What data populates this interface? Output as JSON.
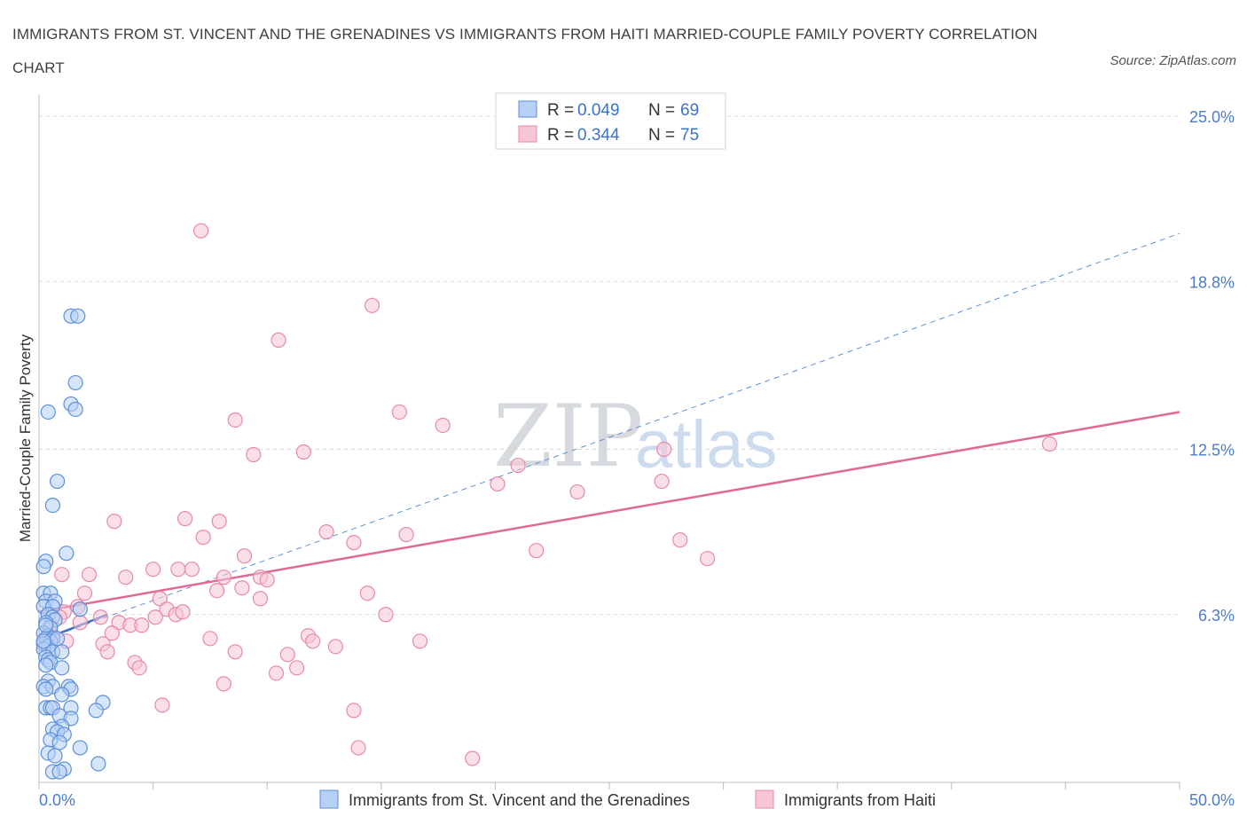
{
  "title": "IMMIGRANTS FROM ST. VINCENT AND THE GRENADINES VS IMMIGRANTS FROM HAITI MARRIED-COUPLE FAMILY POVERTY CORRELATION CHART",
  "source": "Source: ZipAtlas.com",
  "watermark": {
    "zip": "ZIP",
    "atlas": "atlas"
  },
  "colors": {
    "blue_fill": "#b7d0f5",
    "blue_stroke": "#5b8fd6",
    "blue_line": "#3a6fc9",
    "pink_fill": "#f7c5d6",
    "pink_stroke": "#e58aa8",
    "pink_line": "#e06a94",
    "grid": "#d9d9d9",
    "tick_label": "#4a7cc9"
  },
  "legend": {
    "rows": [
      {
        "r_label": "R = ",
        "r_value": "0.049",
        "n_label": "N = ",
        "n_value": "69"
      },
      {
        "r_label": "R = ",
        "r_value": "0.344",
        "n_label": "N = ",
        "n_value": "75"
      }
    ]
  },
  "chart_data": {
    "type": "scatter",
    "title": "IMMIGRANTS FROM ST. VINCENT AND THE GRENADINES VS IMMIGRANTS FROM HAITI MARRIED-COUPLE FAMILY POVERTY CORRELATION CHART",
    "xlabel": "",
    "ylabel": "Married-Couple Family Poverty",
    "xlim": [
      0,
      50
    ],
    "ylim": [
      0,
      25.8
    ],
    "x_tick_labels": [
      "0.0%",
      "50.0%"
    ],
    "y_ticks": [
      6.3,
      12.5,
      18.8,
      25.0
    ],
    "y_tick_labels": [
      "6.3%",
      "12.5%",
      "18.8%",
      "25.0%"
    ],
    "grid": true,
    "legend_placement": "top-center",
    "series": [
      {
        "name": "Immigrants from St. Vincent and the Grenadines",
        "R": 0.049,
        "N": 69,
        "trend": {
          "style": "solid",
          "x": [
            0.0,
            3.0
          ],
          "y": [
            5.3,
            6.3
          ]
        },
        "trend_extended": {
          "style": "dashed",
          "x": [
            0.0,
            50.0
          ],
          "y": [
            5.3,
            20.6
          ]
        },
        "points": [
          [
            1.4,
            17.5
          ],
          [
            1.7,
            17.5
          ],
          [
            1.6,
            15.0
          ],
          [
            1.4,
            14.2
          ],
          [
            1.6,
            14.0
          ],
          [
            0.4,
            13.9
          ],
          [
            0.8,
            11.3
          ],
          [
            0.6,
            10.4
          ],
          [
            1.2,
            8.6
          ],
          [
            0.3,
            8.3
          ],
          [
            0.2,
            8.1
          ],
          [
            0.2,
            7.1
          ],
          [
            0.5,
            7.1
          ],
          [
            0.3,
            6.8
          ],
          [
            0.7,
            6.8
          ],
          [
            0.2,
            6.6
          ],
          [
            0.6,
            6.6
          ],
          [
            1.8,
            6.5
          ],
          [
            0.4,
            6.3
          ],
          [
            0.6,
            6.2
          ],
          [
            0.7,
            6.1
          ],
          [
            0.3,
            6.0
          ],
          [
            0.5,
            5.8
          ],
          [
            0.2,
            5.6
          ],
          [
            0.4,
            5.5
          ],
          [
            0.3,
            5.4
          ],
          [
            0.6,
            5.4
          ],
          [
            0.5,
            5.3
          ],
          [
            0.2,
            5.2
          ],
          [
            0.4,
            5.1
          ],
          [
            0.2,
            5.0
          ],
          [
            0.6,
            4.9
          ],
          [
            1.0,
            4.9
          ],
          [
            0.3,
            4.7
          ],
          [
            0.4,
            4.6
          ],
          [
            0.5,
            4.5
          ],
          [
            0.3,
            4.4
          ],
          [
            1.0,
            4.3
          ],
          [
            0.4,
            3.8
          ],
          [
            0.2,
            3.6
          ],
          [
            0.6,
            3.6
          ],
          [
            1.3,
            3.6
          ],
          [
            0.3,
            3.5
          ],
          [
            1.4,
            3.5
          ],
          [
            1.0,
            3.3
          ],
          [
            2.8,
            3.0
          ],
          [
            0.3,
            2.8
          ],
          [
            0.5,
            2.8
          ],
          [
            0.6,
            2.8
          ],
          [
            1.4,
            2.8
          ],
          [
            2.5,
            2.7
          ],
          [
            0.9,
            2.5
          ],
          [
            1.4,
            2.4
          ],
          [
            1.0,
            2.1
          ],
          [
            0.6,
            2.0
          ],
          [
            0.8,
            1.9
          ],
          [
            1.1,
            1.8
          ],
          [
            0.5,
            1.6
          ],
          [
            0.9,
            1.5
          ],
          [
            1.8,
            1.3
          ],
          [
            0.4,
            1.1
          ],
          [
            0.7,
            1.0
          ],
          [
            2.6,
            0.7
          ],
          [
            1.1,
            0.5
          ],
          [
            0.6,
            0.4
          ],
          [
            0.9,
            0.4
          ],
          [
            0.3,
            5.9
          ],
          [
            0.8,
            5.4
          ],
          [
            0.2,
            5.3
          ]
        ]
      },
      {
        "name": "Immigrants from Haiti",
        "R": 0.344,
        "N": 75,
        "trend": {
          "style": "solid",
          "x": [
            0.0,
            50.0
          ],
          "y": [
            6.4,
            13.9
          ]
        },
        "points": [
          [
            7.1,
            20.7
          ],
          [
            14.6,
            17.9
          ],
          [
            10.5,
            16.6
          ],
          [
            8.6,
            13.6
          ],
          [
            15.8,
            13.9
          ],
          [
            17.7,
            13.4
          ],
          [
            9.4,
            12.3
          ],
          [
            11.6,
            12.4
          ],
          [
            20.1,
            11.2
          ],
          [
            21.0,
            11.9
          ],
          [
            23.6,
            10.9
          ],
          [
            27.4,
            12.5
          ],
          [
            27.3,
            11.3
          ],
          [
            44.3,
            12.7
          ],
          [
            3.3,
            9.8
          ],
          [
            6.4,
            9.9
          ],
          [
            7.9,
            9.8
          ],
          [
            7.2,
            9.2
          ],
          [
            12.6,
            9.4
          ],
          [
            13.8,
            9.0
          ],
          [
            16.1,
            9.3
          ],
          [
            21.8,
            8.7
          ],
          [
            28.1,
            9.1
          ],
          [
            29.3,
            8.4
          ],
          [
            9.0,
            8.5
          ],
          [
            2.2,
            7.8
          ],
          [
            3.8,
            7.7
          ],
          [
            5.0,
            8.0
          ],
          [
            6.1,
            8.0
          ],
          [
            6.7,
            8.0
          ],
          [
            8.1,
            7.7
          ],
          [
            9.7,
            7.7
          ],
          [
            10.0,
            7.6
          ],
          [
            1.0,
            7.8
          ],
          [
            2.0,
            7.1
          ],
          [
            7.8,
            7.2
          ],
          [
            8.9,
            7.3
          ],
          [
            14.4,
            7.1
          ],
          [
            9.7,
            6.9
          ],
          [
            5.3,
            6.9
          ],
          [
            1.7,
            6.6
          ],
          [
            1.1,
            6.4
          ],
          [
            2.7,
            6.2
          ],
          [
            1.8,
            6.0
          ],
          [
            3.5,
            6.0
          ],
          [
            4.0,
            5.9
          ],
          [
            4.5,
            5.9
          ],
          [
            5.6,
            6.5
          ],
          [
            6.0,
            6.3
          ],
          [
            5.1,
            6.2
          ],
          [
            6.3,
            6.4
          ],
          [
            15.2,
            6.3
          ],
          [
            3.2,
            5.6
          ],
          [
            0.6,
            5.5
          ],
          [
            1.2,
            5.3
          ],
          [
            2.8,
            5.2
          ],
          [
            3.0,
            4.9
          ],
          [
            7.5,
            5.4
          ],
          [
            8.6,
            4.9
          ],
          [
            11.8,
            5.5
          ],
          [
            12.0,
            5.3
          ],
          [
            13.0,
            5.1
          ],
          [
            16.7,
            5.3
          ],
          [
            10.9,
            4.8
          ],
          [
            4.2,
            4.5
          ],
          [
            4.4,
            4.3
          ],
          [
            11.3,
            4.3
          ],
          [
            10.4,
            4.1
          ],
          [
            8.1,
            3.7
          ],
          [
            5.4,
            2.9
          ],
          [
            13.8,
            2.7
          ],
          [
            14.0,
            1.3
          ],
          [
            19.0,
            0.9
          ],
          [
            0.5,
            5.9
          ],
          [
            0.9,
            6.2
          ]
        ]
      }
    ]
  }
}
